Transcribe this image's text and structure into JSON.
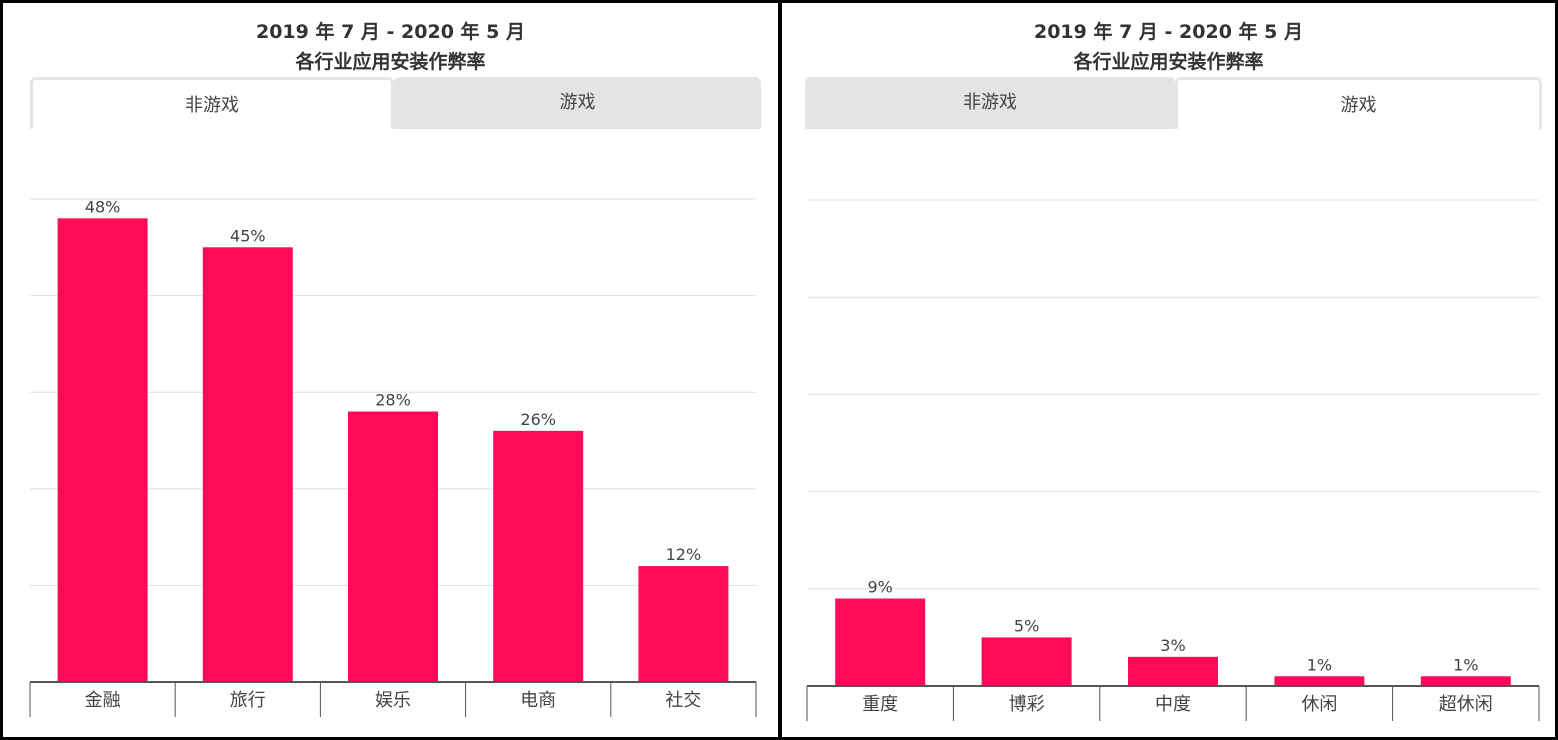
{
  "panels": [
    {
      "title_line1": "2019 年 7 月 - 2020 年 5 月",
      "title_line2": "各行业应用安装作弊率",
      "tabs": [
        {
          "label": "非游戏",
          "active": true
        },
        {
          "label": "游戏",
          "active": false
        }
      ]
    },
    {
      "title_line1": "2019 年 7 月 - 2020 年 5 月",
      "title_line2": "各行业应用安装作弊率",
      "tabs": [
        {
          "label": "非游戏",
          "active": false
        },
        {
          "label": "游戏",
          "active": true
        }
      ]
    }
  ],
  "colors": {
    "bar": "#ff0a59",
    "grid": "#e0e0e0",
    "axis": "#555555"
  },
  "chart_data": [
    {
      "type": "bar",
      "title": "2019 年 7 月 - 2020 年 5 月 各行业应用安装作弊率",
      "categories": [
        "金融",
        "旅行",
        "娱乐",
        "电商",
        "社交"
      ],
      "values": [
        48,
        45,
        28,
        26,
        12
      ],
      "value_labels": [
        "48%",
        "45%",
        "28%",
        "26%",
        "12%"
      ],
      "unit": "%",
      "ylim": [
        0,
        50
      ],
      "grid": true
    },
    {
      "type": "bar",
      "title": "2019 年 7 月 - 2020 年 5 月 各行业应用安装作弊率",
      "categories": [
        "重度",
        "博彩",
        "中度",
        "休闲",
        "超休闲"
      ],
      "values": [
        9,
        5,
        3,
        1,
        1
      ],
      "value_labels": [
        "9%",
        "5%",
        "3%",
        "1%",
        "1%"
      ],
      "unit": "%",
      "ylim": [
        0,
        50
      ],
      "grid": true
    }
  ]
}
